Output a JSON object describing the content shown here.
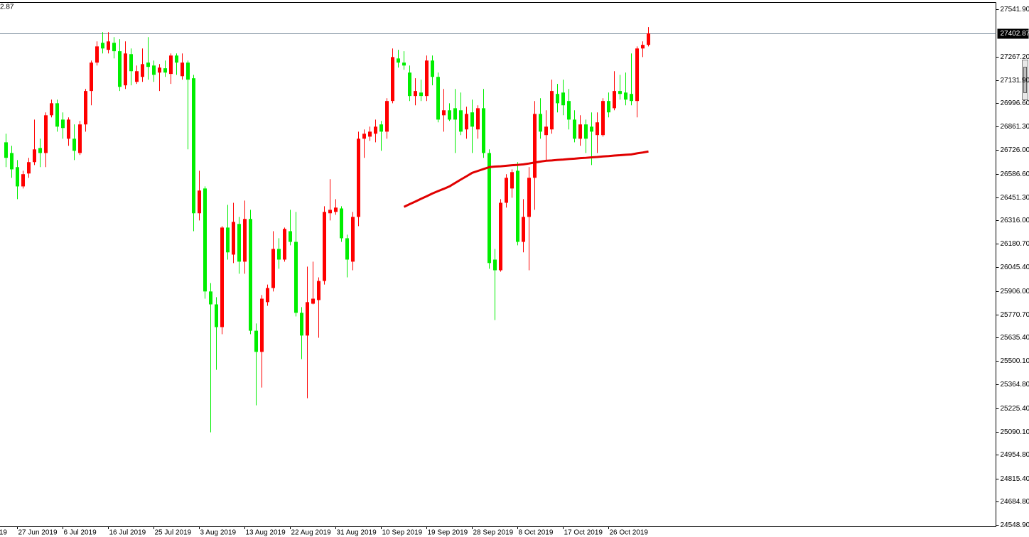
{
  "chart_data": {
    "type": "candlestick",
    "corner_text": "2.87",
    "x_label_cut": "19",
    "categories": [
      null,
      null,
      "27 Jun 2019",
      null,
      null,
      null,
      null,
      null,
      null,
      null,
      "6 Jul 2019",
      null,
      null,
      null,
      null,
      null,
      null,
      null,
      "16 Jul 2019",
      null,
      null,
      null,
      null,
      null,
      null,
      null,
      "25 Jul 2019",
      null,
      null,
      null,
      null,
      null,
      null,
      null,
      "3 Aug 2019",
      null,
      null,
      null,
      null,
      null,
      null,
      null,
      "13 Aug 2019",
      null,
      null,
      null,
      null,
      null,
      null,
      null,
      "22 Aug 2019",
      null,
      null,
      null,
      null,
      null,
      null,
      null,
      "31 Aug 2019",
      null,
      null,
      null,
      null,
      null,
      null,
      null,
      "10 Sep 2019",
      null,
      null,
      null,
      null,
      null,
      null,
      null,
      "19 Sep 2019",
      null,
      null,
      null,
      null,
      null,
      null,
      null,
      "28 Sep 2019",
      null,
      null,
      null,
      null,
      null,
      null,
      null,
      "8 Oct 2019",
      null,
      null,
      null,
      null,
      null,
      null,
      null,
      "17 Oct 2019",
      null,
      null,
      null,
      null,
      null,
      null,
      null,
      "26 Oct 2019",
      null,
      null,
      null,
      null,
      null,
      null,
      null
    ],
    "open": [
      26770,
      26708,
      26626,
      26514,
      26589,
      26655,
      26737,
      26708,
      26927,
      26997,
      26902,
      26791,
      26791,
      26708,
      26874,
      27068,
      27233,
      27348,
      27307,
      27348,
      27299,
      27101,
      27282,
      27121,
      27150,
      27233,
      27216,
      27175,
      27200,
      27167,
      27274,
      27154,
      27233,
      27142,
      26358,
      26502,
      25904,
      25829,
      25697,
      26275,
      26118,
      26296,
      26077,
      26325,
      25676,
      25553,
      25842,
      25924,
      26151,
      26089,
      26254,
      26192,
      25780,
      25648,
      25833,
      25854,
      25965,
      26358,
      26366,
      26386,
      26213,
      26077,
      26337,
      26791,
      26803,
      26820,
      26874,
      26832,
      27010,
      27257,
      27233,
      27175,
      27039,
      27059,
      27039,
      27245,
      27150,
      26927,
      26956,
      26968,
      26956,
      26845,
      26944,
      26845,
      26968,
      26708,
      26089,
      26027,
      26419,
      26502,
      26605,
      26192,
      26337,
      26564,
      26935,
      26812,
      26845,
      27051,
      27059,
      27010,
      26902,
      26791,
      26874,
      26861,
      26812,
      26812,
      27010,
      26968,
      27068,
      27059,
      27051,
      27010,
      27315,
      27336
    ],
    "high": [
      26820,
      26750,
      26667,
      26605,
      26680,
      26902,
      26791,
      26944,
      27018,
      27018,
      26944,
      26915,
      26874,
      26894,
      27080,
      27245,
      27356,
      27410,
      27410,
      27381,
      27369,
      27356,
      27315,
      27216,
      27315,
      27381,
      27245,
      27224,
      27245,
      27286,
      27286,
      27286,
      27245,
      27162,
      26605,
      26514,
      25953,
      25871,
      26283,
      26407,
      26419,
      26337,
      26432,
      26378,
      25718,
      25883,
      25944,
      26254,
      26213,
      26275,
      26378,
      26366,
      25813,
      26048,
      26077,
      25986,
      26399,
      26556,
      26440,
      26399,
      26234,
      26366,
      26832,
      26845,
      26861,
      26902,
      26894,
      27026,
      27315,
      27307,
      27299,
      27216,
      27142,
      27134,
      27274,
      27274,
      27175,
      27080,
      26997,
      27080,
      27059,
      26977,
      27018,
      26985,
      27080,
      26729,
      26151,
      26440,
      26585,
      26613,
      26655,
      26440,
      26626,
      27010,
      27026,
      26956,
      27134,
      27109,
      27134,
      27080,
      26956,
      26927,
      26902,
      26944,
      26944,
      27026,
      27059,
      27183,
      27162,
      27175,
      27286,
      27327,
      27356,
      27439
    ],
    "low": [
      26626,
      26564,
      26440,
      26502,
      26564,
      26638,
      26626,
      26626,
      26915,
      26832,
      26791,
      26750,
      26667,
      26696,
      26832,
      26985,
      27216,
      27286,
      27286,
      27257,
      27068,
      27080,
      27101,
      27109,
      27121,
      27134,
      27121,
      27068,
      27150,
      27109,
      27162,
      27134,
      26729,
      26254,
      26316,
      25862,
      25086,
      25449,
      25656,
      26089,
      26069,
      26007,
      26007,
      25656,
      25243,
      25346,
      25821,
      25904,
      26036,
      26077,
      26172,
      25759,
      25511,
      25284,
      25829,
      25635,
      25944,
      26316,
      26349,
      26192,
      25986,
      26027,
      26283,
      26680,
      26779,
      26770,
      26721,
      26791,
      26997,
      27204,
      27191,
      27010,
      26985,
      27010,
      27010,
      27101,
      26886,
      26832,
      26894,
      26708,
      26812,
      26791,
      26708,
      26791,
      26680,
      26036,
      25738,
      26019,
      26391,
      26448,
      26172,
      26131,
      26027,
      26378,
      26791,
      26667,
      26820,
      26944,
      26927,
      26845,
      26770,
      26750,
      26708,
      26638,
      26708,
      26803,
      26915,
      26956,
      27018,
      26985,
      26985,
      26915,
      27265,
      27327
    ],
    "close": [
      26680,
      26613,
      26514,
      26585,
      26655,
      26729,
      26708,
      26927,
      26997,
      26861,
      26853,
      26902,
      26721,
      26874,
      27068,
      27233,
      27327,
      27315,
      27356,
      27299,
      27092,
      27286,
      27183,
      27183,
      27224,
      27208,
      27162,
      27204,
      27175,
      27274,
      27233,
      27233,
      27134,
      26358,
      26490,
      25904,
      25829,
      25697,
      26275,
      26131,
      26308,
      26077,
      26325,
      25676,
      25553,
      25862,
      25924,
      26151,
      26089,
      26267,
      26192,
      25780,
      25648,
      25842,
      25862,
      25965,
      26366,
      26378,
      26391,
      26213,
      26089,
      26337,
      26791,
      26820,
      26832,
      26861,
      26832,
      27010,
      27265,
      27233,
      27216,
      27039,
      27068,
      27039,
      27245,
      27150,
      26902,
      26956,
      26902,
      26902,
      26832,
      26935,
      26861,
      26968,
      26708,
      26069,
      26027,
      26419,
      26564,
      26597,
      26192,
      26337,
      26564,
      26935,
      26832,
      26861,
      27068,
      26997,
      26985,
      26902,
      26791,
      26874,
      26791,
      26832,
      26886,
      27010,
      26944,
      27068,
      27051,
      27018,
      27010,
      27315,
      27336,
      27402.87
    ],
    "up_color": "#ff0000",
    "down_color": "#00ee00",
    "ma": {
      "color": "#e00000",
      "values": [
        null,
        null,
        null,
        null,
        null,
        null,
        null,
        null,
        null,
        null,
        null,
        null,
        null,
        null,
        null,
        null,
        null,
        null,
        null,
        null,
        null,
        null,
        null,
        null,
        null,
        null,
        null,
        null,
        null,
        null,
        null,
        null,
        null,
        null,
        null,
        null,
        null,
        null,
        null,
        null,
        null,
        null,
        null,
        null,
        null,
        null,
        null,
        null,
        null,
        null,
        null,
        null,
        null,
        null,
        null,
        null,
        null,
        null,
        null,
        null,
        null,
        null,
        null,
        null,
        null,
        null,
        null,
        null,
        null,
        null,
        26395,
        26411,
        26426,
        26442,
        26457,
        26473,
        26487,
        26500,
        26514,
        26534,
        26554,
        26573,
        26593,
        26604,
        26615,
        26626,
        26629,
        26631,
        26634,
        26637,
        26639,
        26642,
        26647,
        26653,
        26658,
        26663,
        26665,
        26668,
        26670,
        26673,
        26675,
        26678,
        26680,
        26683,
        26685,
        26688,
        26690,
        26693,
        26695,
        26698,
        26700,
        26706,
        26711,
        26717
      ]
    },
    "last_price": {
      "value": 27402.87,
      "label": "27402.87"
    },
    "last_price_line_color": "#8090a0",
    "ylim": [
      24540,
      27580
    ],
    "yticks": [
      {
        "value": 27541.9,
        "label": "27541.90"
      },
      {
        "value": 27267.2,
        "label": "27267.20"
      },
      {
        "value": 27131.9,
        "label": "27131.90"
      },
      {
        "value": 26996.6,
        "label": "26996.60"
      },
      {
        "value": 26861.3,
        "label": "26861.30"
      },
      {
        "value": 26726,
        "label": "26726.00"
      },
      {
        "value": 26586.6,
        "label": "26586.60"
      },
      {
        "value": 26451.3,
        "label": "26451.30"
      },
      {
        "value": 26316,
        "label": "26316.00"
      },
      {
        "value": 26180.7,
        "label": "26180.70"
      },
      {
        "value": 26045.4,
        "label": "26045.40"
      },
      {
        "value": 25906,
        "label": "25906.00"
      },
      {
        "value": 25770.7,
        "label": "25770.70"
      },
      {
        "value": 25635.4,
        "label": "25635.40"
      },
      {
        "value": 25500.1,
        "label": "25500.10"
      },
      {
        "value": 25364.8,
        "label": "25364.80"
      },
      {
        "value": 25225.4,
        "label": "25225.40"
      },
      {
        "value": 25090.1,
        "label": "25090.10"
      },
      {
        "value": 24954.8,
        "label": "24954.80"
      },
      {
        "value": 24815.4,
        "label": "24815.40"
      },
      {
        "value": 24684.8,
        "label": "24684.80"
      },
      {
        "value": 24548.9,
        "label": "24548.90"
      }
    ],
    "grid": false
  }
}
